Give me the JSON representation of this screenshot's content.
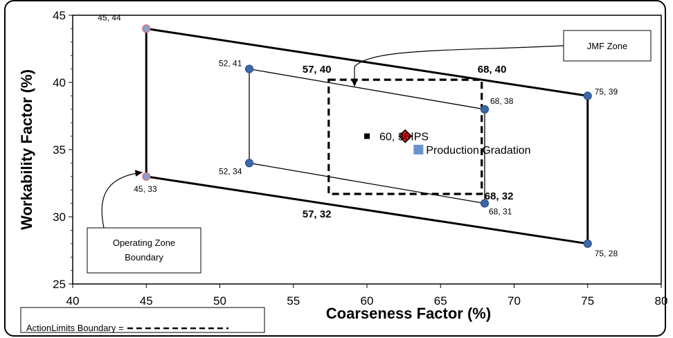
{
  "chart_data": {
    "type": "scatter",
    "title": "",
    "xlabel": "Coarseness Factor (%)",
    "ylabel": "Workability Factor (%)",
    "xlim": [
      40,
      80
    ],
    "ylim": [
      25,
      45
    ],
    "xticks": [
      40,
      45,
      50,
      55,
      60,
      65,
      70,
      75,
      80
    ],
    "yticks": [
      25,
      30,
      35,
      40,
      45
    ],
    "grid": false,
    "operating_zone": {
      "points": [
        [
          45,
          44
        ],
        [
          75,
          39
        ],
        [
          75,
          28
        ],
        [
          45,
          33
        ]
      ],
      "labels": [
        "45, 44",
        "75, 39",
        "75, 28",
        "45, 33"
      ]
    },
    "inner_zone": {
      "points": [
        [
          52,
          41
        ],
        [
          68,
          38
        ],
        [
          68,
          31
        ],
        [
          52,
          34
        ]
      ],
      "labels": [
        "52, 41",
        "68, 38",
        "68, 31",
        "52, 34"
      ]
    },
    "action_limits": {
      "points": [
        [
          57.4,
          40.2
        ],
        [
          67.8,
          40.2
        ],
        [
          67.8,
          31.7
        ],
        [
          57.4,
          31.7
        ]
      ],
      "labels": [
        "57, 40",
        "68, 40",
        "68, 32",
        "57, 32"
      ]
    },
    "ips_point": {
      "x": 60,
      "y": 36,
      "label": "60, 36",
      "name": "IPS"
    },
    "production_point": {
      "x": 62.6,
      "y": 36,
      "name": "Production Gradation"
    },
    "production_legend_marker": {
      "x": 63.5,
      "y": 35
    },
    "colors": {
      "boundary": "#000000",
      "marker": "#3c68a8",
      "marker_edge": "#2a4f86",
      "diamond": "#e01818",
      "legend_square": "#6a92cf"
    }
  },
  "callouts": {
    "jmf_zone": "JMF Zone",
    "operating_zone_line1": "Operating Zone",
    "operating_zone_line2": "Boundary",
    "action_limits": "ActionLimits Boundary ="
  }
}
